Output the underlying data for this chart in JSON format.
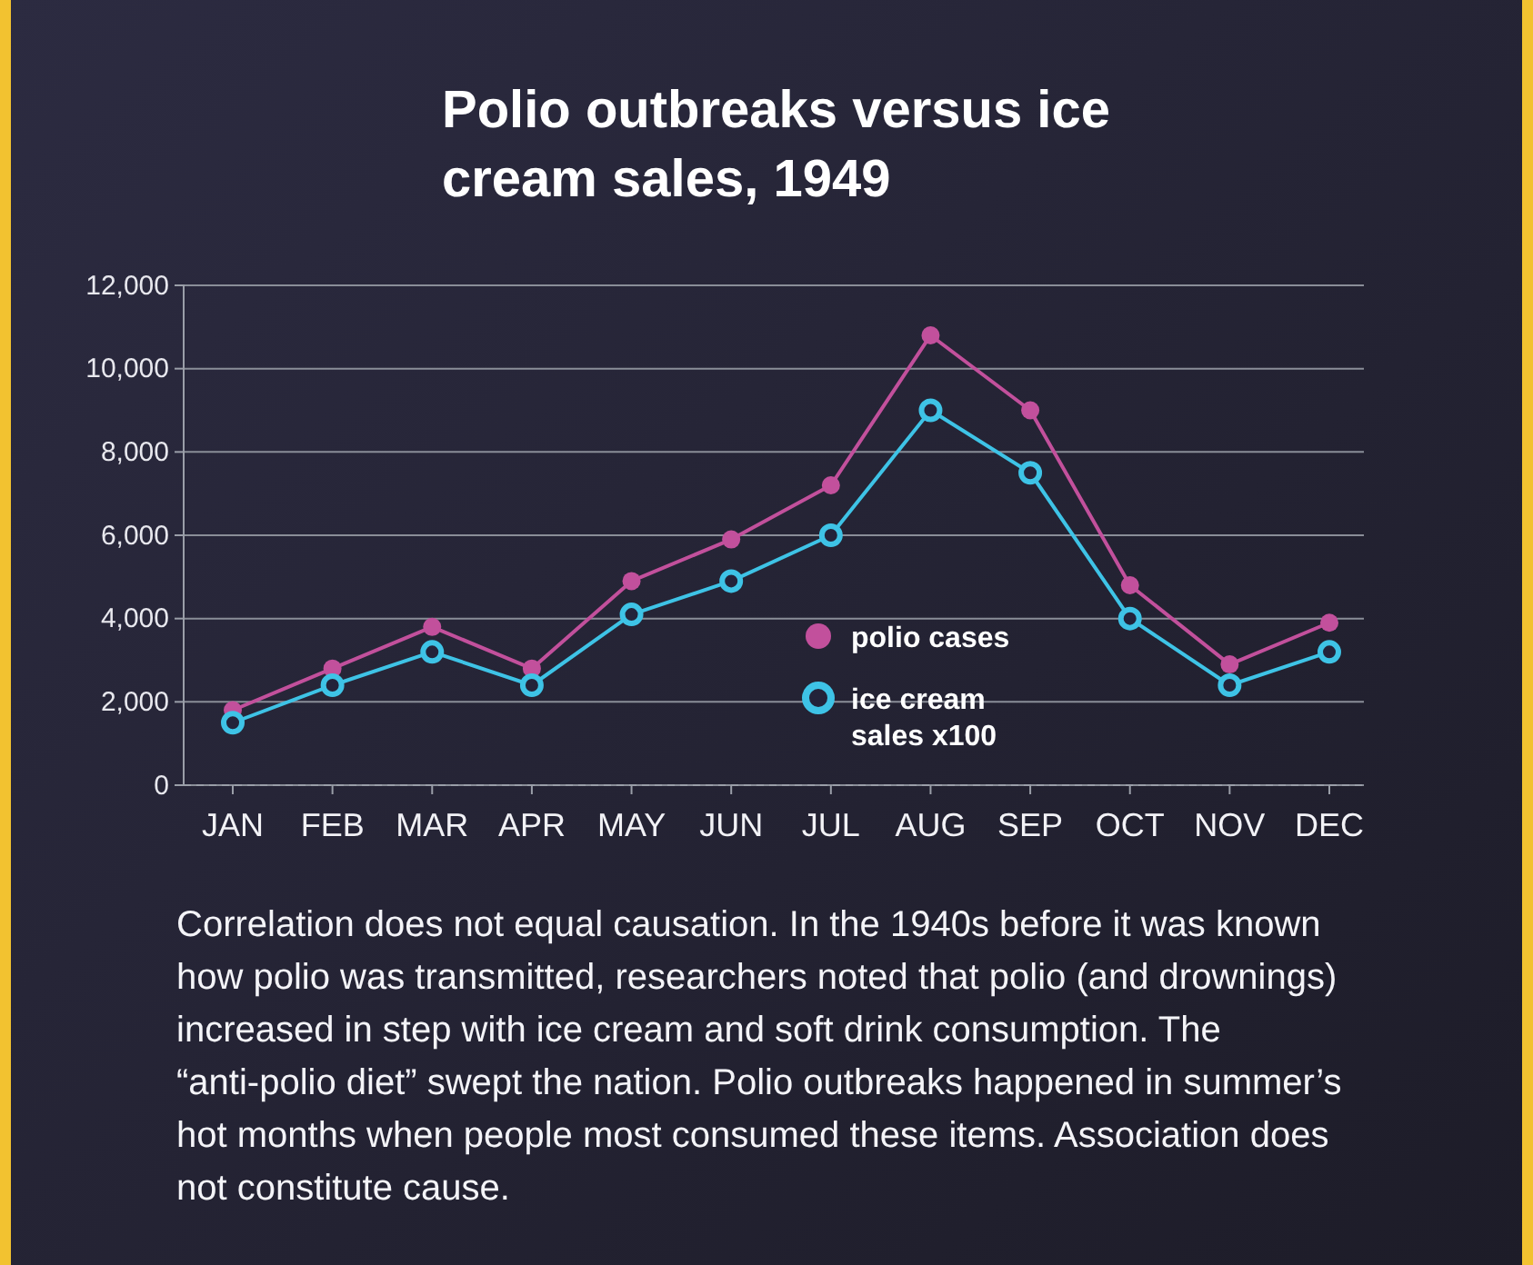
{
  "chart_data": {
    "type": "line",
    "title": "Polio outbreaks versus ice cream sales, 1949",
    "categories": [
      "JAN",
      "FEB",
      "MAR",
      "APR",
      "MAY",
      "JUN",
      "JUL",
      "AUG",
      "SEP",
      "OCT",
      "NOV",
      "DEC"
    ],
    "series": [
      {
        "name": "polio cases",
        "color": "#c2509c",
        "values": [
          1800,
          2800,
          3800,
          2800,
          4900,
          5900,
          7200,
          10800,
          9000,
          4800,
          2900,
          3900
        ]
      },
      {
        "name": "ice cream sales x100",
        "color": "#3ec3e6",
        "values": [
          1500,
          2400,
          3200,
          2400,
          4100,
          4900,
          6000,
          9000,
          7500,
          4000,
          2400,
          3200
        ]
      }
    ],
    "ylim": [
      0,
      12000
    ],
    "yticks": [
      {
        "value": 0,
        "label": "0"
      },
      {
        "value": 2000,
        "label": "2,000"
      },
      {
        "value": 4000,
        "label": "4,000"
      },
      {
        "value": 6000,
        "label": "6,000"
      },
      {
        "value": 8000,
        "label": "8,000"
      },
      {
        "value": 10000,
        "label": "10,000"
      },
      {
        "value": 12000,
        "label": "12,000"
      }
    ],
    "grid": "y",
    "legend": "bottom",
    "marker": "circle",
    "line_style": "solid",
    "annotations": [
      "Correlation does not equal causation. In the 1940s before it was known how polio was transmitted, researchers noted that polio (and drownings) increased in step with ice cream and soft drink consumption. The “anti-polio diet” swept the nation. Polio outbreaks happened in summer’s hot months when people most consumed these items. Association does not constitute cause."
    ]
  }
}
